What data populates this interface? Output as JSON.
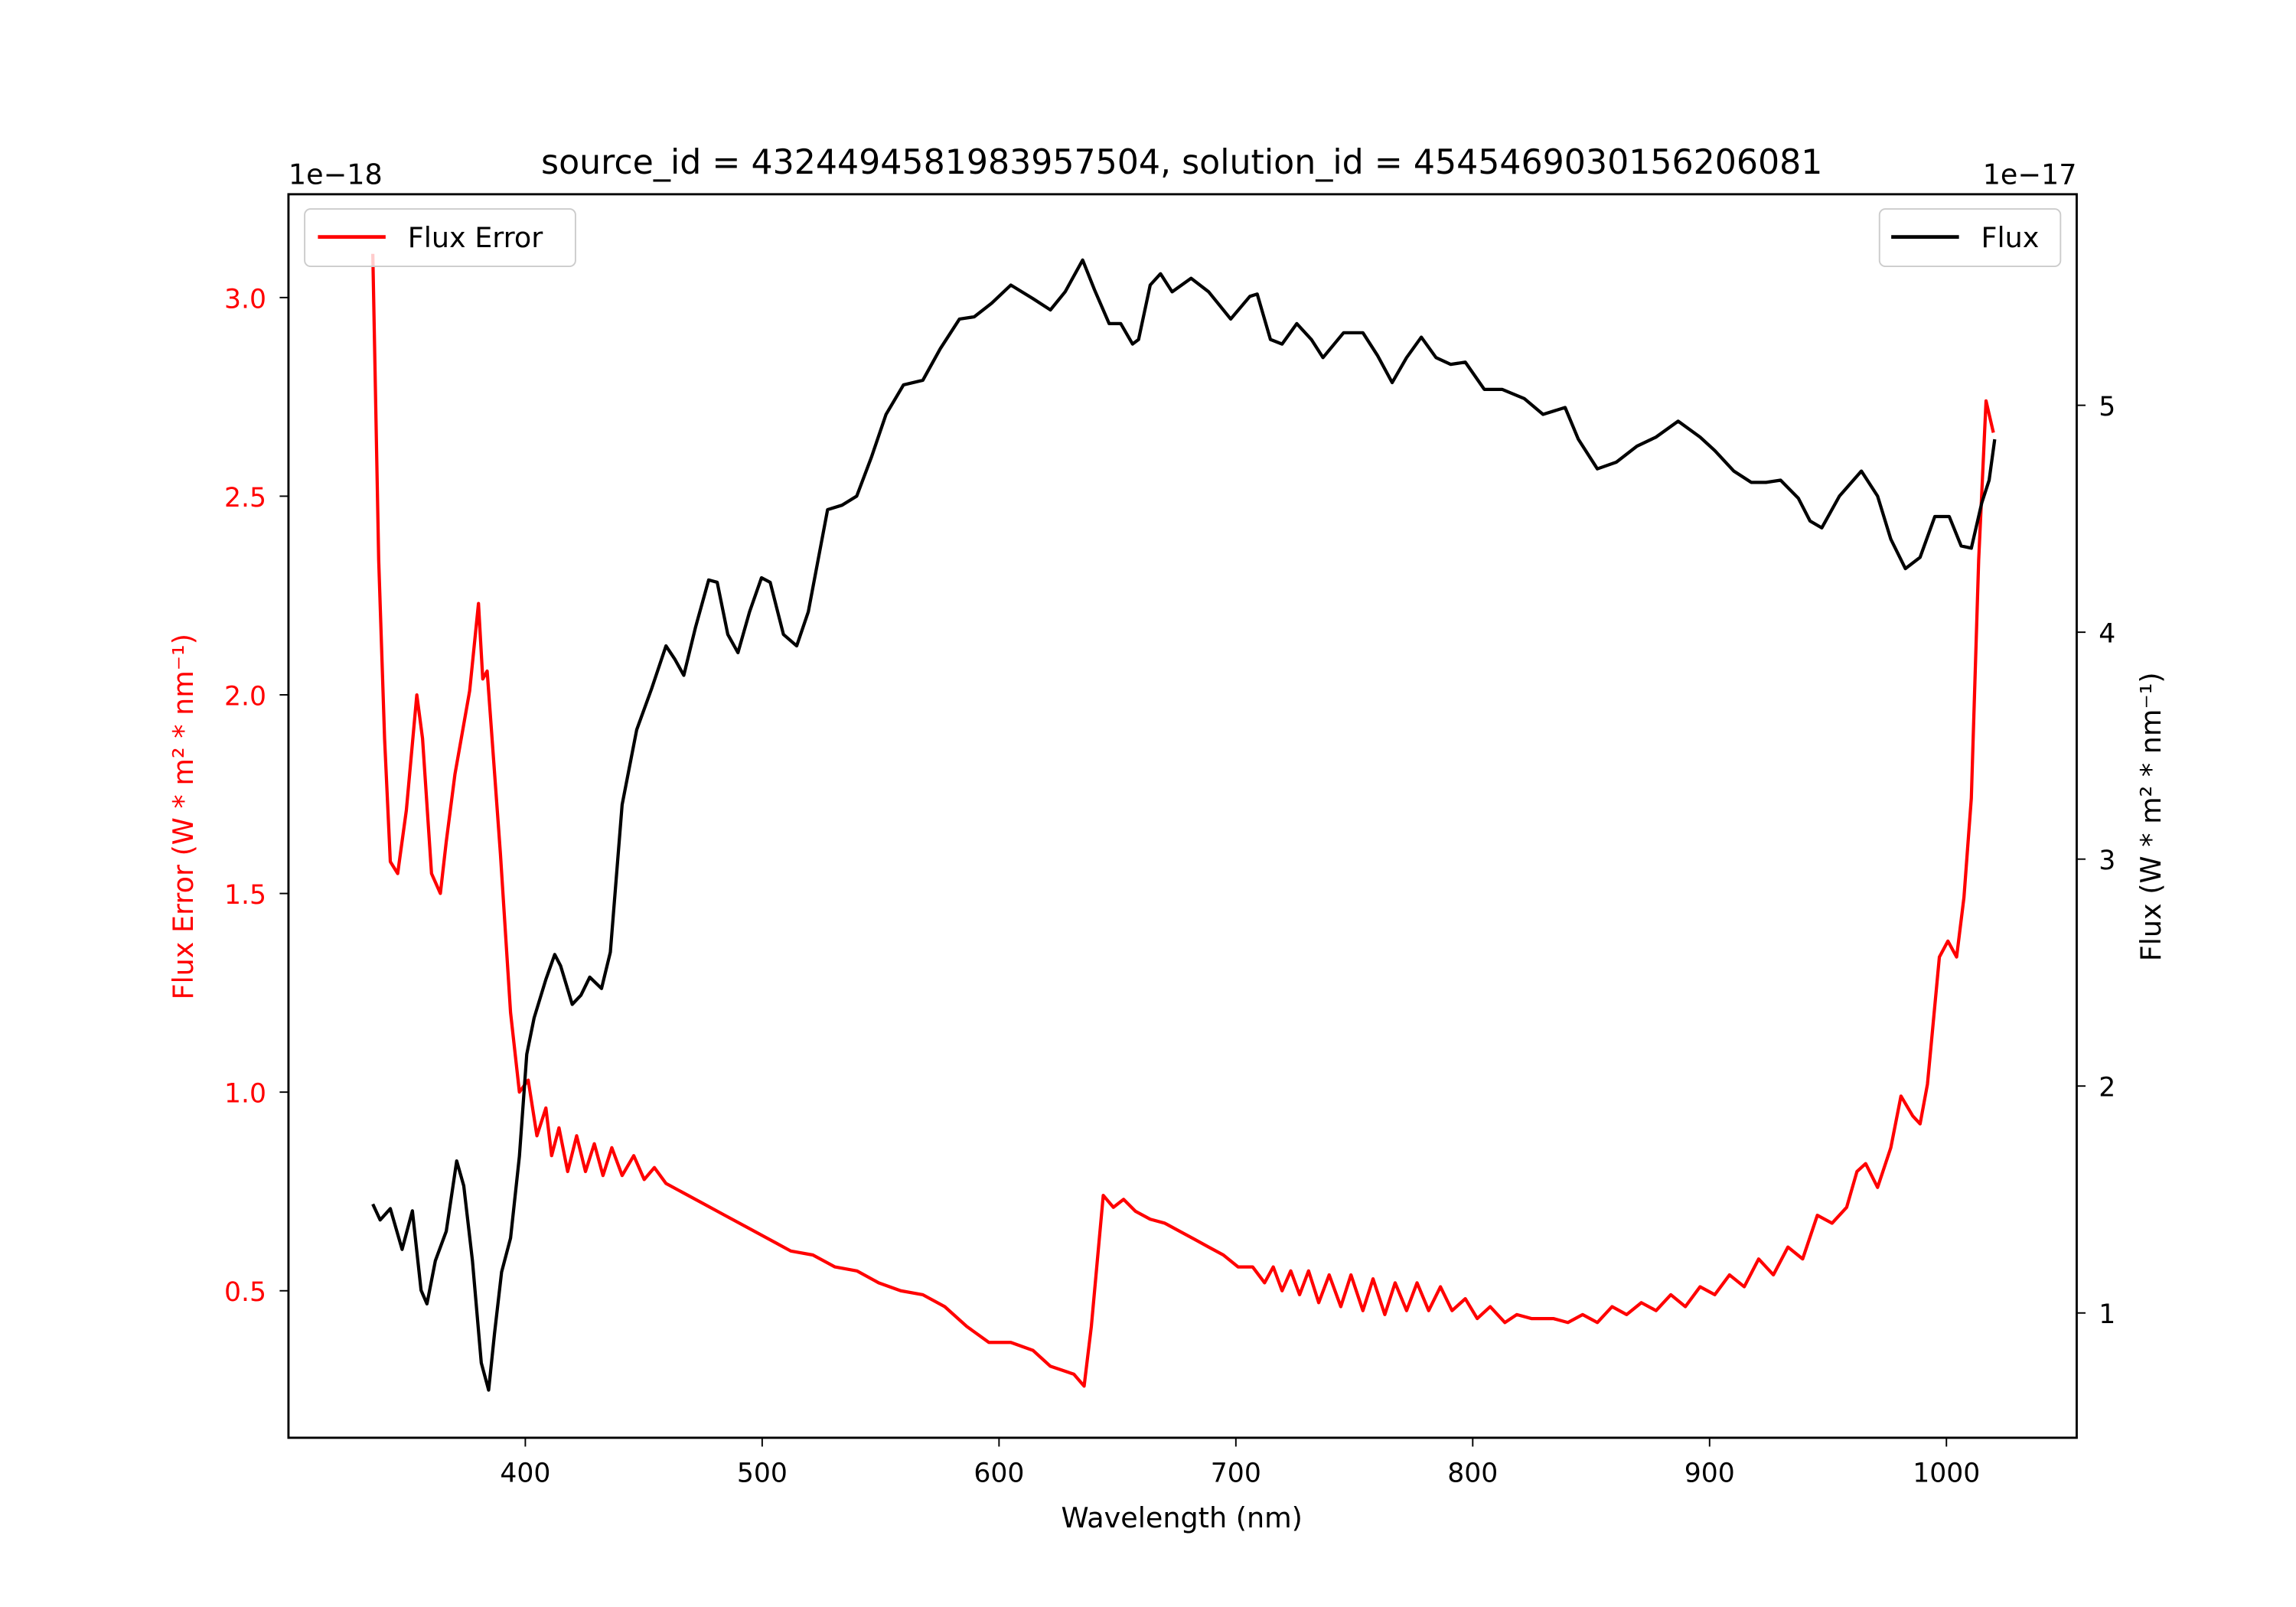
{
  "chart_data": {
    "type": "line",
    "title": "source_id = 4324494581983957504, solution_id = 4545469030156206081",
    "xlabel": "Wavelength (nm)",
    "ylabel_left": "Flux Error (W * m² * nm⁻¹)",
    "ylabel_right": "Flux (W * m² * nm⁻¹)",
    "offset_left": "1e−18",
    "offset_right": "1e−17",
    "xlim": [
      300,
      1055
    ],
    "ylim_left": [
      0.13,
      3.26
    ],
    "ylim_right": [
      0.45,
      5.93
    ],
    "x_ticks": [
      "400",
      "500",
      "600",
      "700",
      "800",
      "900",
      "1000"
    ],
    "x_tick_values": [
      400,
      500,
      600,
      700,
      800,
      900,
      1000
    ],
    "y_left_ticks": [
      "0.5",
      "1.0",
      "1.5",
      "2.0",
      "2.5",
      "3.0"
    ],
    "y_left_tick_values": [
      0.5,
      1.0,
      1.5,
      2.0,
      2.5,
      3.0
    ],
    "y_right_ticks": [
      "1",
      "2",
      "3",
      "4",
      "5"
    ],
    "y_right_tick_values": [
      1,
      2,
      3,
      4,
      5
    ],
    "colors": {
      "flux_error": "#ff0000",
      "flux": "#000000"
    },
    "legend_left": {
      "label": "Flux Error",
      "placement": "upper-left"
    },
    "legend_right": {
      "label": "Flux",
      "placement": "upper-right"
    },
    "series": [
      {
        "name": "Flux Error",
        "axis": "left",
        "color": "#ff0000",
        "x": [
          335.6,
          338.1,
          340.6,
          343,
          346.1,
          349.8,
          354.2,
          356.6,
          360.4,
          364.1,
          366.6,
          370.3,
          376.5,
          380.2,
          382,
          383.9,
          389.5,
          393.8,
          397.5,
          401.2,
          404.9,
          408.7,
          411.1,
          414.2,
          417.9,
          421.7,
          425.4,
          429.1,
          432.8,
          436.5,
          440.9,
          445.8,
          450.2,
          454.5,
          459.4,
          465.6,
          474.9,
          484.2,
          493.5,
          502.8,
          512.1,
          521.4,
          530.7,
          540,
          549.2,
          558.5,
          567.8,
          577.1,
          586.4,
          595.7,
          605,
          614.3,
          621.7,
          631.6,
          635.9,
          639,
          644,
          648.3,
          652.6,
          657.6,
          663.8,
          670,
          676.2,
          682.4,
          688.5,
          694.7,
          700.9,
          707.1,
          712.1,
          715.8,
          719.5,
          723.2,
          726.9,
          730.7,
          735,
          739.4,
          744.3,
          748.6,
          753.6,
          757.9,
          762.9,
          767.2,
          772.1,
          776.5,
          781.4,
          786.4,
          791.3,
          796.9,
          801.9,
          807.4,
          813.6,
          818.6,
          824.8,
          834,
          840.2,
          846.4,
          852.6,
          858.8,
          865,
          871.2,
          877.4,
          883.6,
          889.8,
          896,
          902.2,
          908.4,
          914.6,
          920.7,
          926.9,
          933.1,
          939.3,
          945.5,
          951.7,
          957.9,
          962.2,
          965.9,
          970.9,
          976.5,
          980.8,
          985.8,
          988.9,
          992,
          997,
          1000.6,
          1004.3,
          1007.4,
          1010.5,
          1013.6,
          1016.7,
          1019.8
        ],
        "y": [
          3.11,
          2.34,
          1.89,
          1.58,
          1.55,
          1.71,
          2.0,
          1.89,
          1.55,
          1.5,
          1.63,
          1.8,
          2.01,
          2.23,
          2.04,
          2.06,
          1.6,
          1.2,
          1.0,
          1.03,
          0.89,
          0.96,
          0.84,
          0.91,
          0.8,
          0.89,
          0.8,
          0.87,
          0.79,
          0.86,
          0.79,
          0.84,
          0.78,
          0.81,
          0.77,
          0.75,
          0.72,
          0.69,
          0.66,
          0.63,
          0.6,
          0.59,
          0.56,
          0.55,
          0.52,
          0.5,
          0.49,
          0.46,
          0.41,
          0.37,
          0.37,
          0.35,
          0.31,
          0.29,
          0.26,
          0.41,
          0.74,
          0.71,
          0.73,
          0.7,
          0.68,
          0.67,
          0.65,
          0.63,
          0.61,
          0.59,
          0.56,
          0.56,
          0.52,
          0.56,
          0.5,
          0.55,
          0.49,
          0.55,
          0.47,
          0.54,
          0.46,
          0.54,
          0.45,
          0.53,
          0.44,
          0.52,
          0.45,
          0.52,
          0.45,
          0.51,
          0.45,
          0.48,
          0.43,
          0.46,
          0.42,
          0.44,
          0.43,
          0.43,
          0.42,
          0.44,
          0.42,
          0.46,
          0.44,
          0.47,
          0.45,
          0.49,
          0.46,
          0.51,
          0.49,
          0.54,
          0.51,
          0.58,
          0.54,
          0.61,
          0.58,
          0.69,
          0.67,
          0.71,
          0.8,
          0.82,
          0.76,
          0.86,
          0.99,
          0.94,
          0.92,
          1.02,
          1.34,
          1.38,
          1.34,
          1.49,
          1.74,
          2.34,
          2.74,
          2.66
        ]
      },
      {
        "name": "Flux",
        "axis": "right",
        "color": "#000000",
        "x": [
          335.6,
          338.7,
          343,
          348,
          352.3,
          356,
          358.5,
          362,
          366.6,
          371,
          374,
          377.7,
          381.4,
          384.5,
          387,
          390,
          393.8,
          397.5,
          400.6,
          403.7,
          408.7,
          412.4,
          414.9,
          419.8,
          423.5,
          427.2,
          432.2,
          435.9,
          440.9,
          447,
          453.3,
          459.4,
          463.2,
          466.9,
          471.8,
          477.4,
          481,
          485.5,
          489.8,
          494.7,
          499.7,
          503.4,
          509,
          514.6,
          519.5,
          527.6,
          533.7,
          539.9,
          546.1,
          552.3,
          559.7,
          567.8,
          575.2,
          583.3,
          589.5,
          596.9,
          605,
          614.3,
          621.7,
          627.9,
          635.3,
          640.3,
          646.5,
          651.4,
          656.4,
          658.9,
          663.8,
          668.2,
          673.1,
          681.1,
          688.5,
          697.8,
          705.9,
          709,
          714.6,
          719.5,
          725.7,
          731.9,
          736.8,
          745.5,
          753.6,
          759.8,
          766,
          772.1,
          778.3,
          784.5,
          790.7,
          796.9,
          804.9,
          812.4,
          821.7,
          829.7,
          839,
          844.6,
          852.6,
          860.7,
          869.3,
          877.4,
          886.7,
          896,
          902.2,
          910.2,
          917.6,
          923.8,
          930,
          937.5,
          942.4,
          947.4,
          954.8,
          964.1,
          970.9,
          976.5,
          982.7,
          988.9,
          995.1,
          1001.2,
          1006.2,
          1010.5,
          1014.9,
          1018,
          1020.4
        ],
        "y": [
          1.48,
          1.41,
          1.46,
          1.28,
          1.45,
          1.1,
          1.04,
          1.23,
          1.36,
          1.67,
          1.56,
          1.23,
          0.78,
          0.66,
          0.91,
          1.18,
          1.33,
          1.69,
          2.14,
          2.3,
          2.47,
          2.58,
          2.53,
          2.36,
          2.4,
          2.48,
          2.43,
          2.59,
          3.24,
          3.57,
          3.75,
          3.94,
          3.88,
          3.81,
          4.02,
          4.23,
          4.22,
          3.99,
          3.91,
          4.09,
          4.24,
          4.22,
          3.99,
          3.94,
          4.09,
          4.54,
          4.56,
          4.6,
          4.77,
          4.96,
          5.09,
          5.11,
          5.25,
          5.38,
          5.39,
          5.45,
          5.53,
          5.47,
          5.42,
          5.5,
          5.64,
          5.51,
          5.36,
          5.36,
          5.27,
          5.29,
          5.53,
          5.58,
          5.5,
          5.56,
          5.5,
          5.38,
          5.48,
          5.49,
          5.29,
          5.27,
          5.36,
          5.29,
          5.21,
          5.32,
          5.32,
          5.22,
          5.1,
          5.21,
          5.3,
          5.21,
          5.18,
          5.19,
          5.07,
          5.07,
          5.03,
          4.96,
          4.99,
          4.85,
          4.72,
          4.75,
          4.82,
          4.86,
          4.93,
          4.86,
          4.8,
          4.71,
          4.66,
          4.66,
          4.67,
          4.59,
          4.49,
          4.46,
          4.6,
          4.71,
          4.6,
          4.41,
          4.28,
          4.33,
          4.51,
          4.51,
          4.38,
          4.37,
          4.57,
          4.67,
          4.85
        ]
      }
    ]
  }
}
